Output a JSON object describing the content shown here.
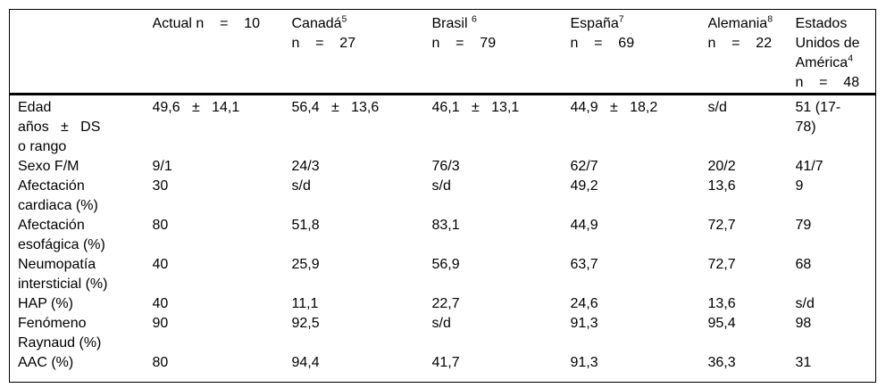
{
  "page": {
    "background_color": "#ffffff",
    "text_color": "#000000",
    "border_color": "#000000"
  },
  "table": {
    "header": {
      "columns": [
        {
          "id": "row-labels",
          "lines": []
        },
        {
          "id": "actual",
          "lines": [
            {
              "text": "Actual n    =    10"
            }
          ]
        },
        {
          "id": "canada",
          "lines": [
            {
              "text": "Canadá",
              "sup": "5"
            },
            {
              "text": "n    =    27"
            }
          ]
        },
        {
          "id": "brasil",
          "lines": [
            {
              "text": "Brasil ",
              "sup": "6"
            },
            {
              "text": "n    =    79"
            }
          ]
        },
        {
          "id": "espana",
          "lines": [
            {
              "text": "España",
              "sup": "7"
            },
            {
              "text": "n    =    69"
            }
          ]
        },
        {
          "id": "alemania",
          "lines": [
            {
              "text": "Alemania",
              "sup": "8"
            },
            {
              "text": "n    =    22"
            }
          ]
        },
        {
          "id": "estados-unidos-de-america",
          "lines": [
            {
              "text": "Estados"
            },
            {
              "text": "Unidos de"
            },
            {
              "text": "América",
              "sup": "4"
            },
            {
              "text": "n    =    48"
            }
          ]
        }
      ]
    },
    "rows": [
      {
        "label": "Edad\naños   ±   DS\no rango",
        "values": [
          "49,6   ±   14,1",
          "56,4   ±   13,6",
          "46,1   ±   13,1",
          "44,9   ±   18,2",
          "s/d",
          "51 (17-\n78)"
        ]
      },
      {
        "label": "Sexo F/M",
        "values": [
          "9/1",
          "24/3",
          "76/3",
          "62/7",
          "20/2",
          "41/7"
        ]
      },
      {
        "label": "Afectación\ncardiaca (%)",
        "values": [
          "30",
          "s/d",
          "s/d",
          "49,2",
          "13,6",
          "9"
        ]
      },
      {
        "label": "Afectación\nesofágica (%)",
        "values": [
          "80",
          "51,8",
          "83,1",
          "44,9",
          "72,7",
          "79"
        ]
      },
      {
        "label": "Neumopatía\nintersticial (%)",
        "values": [
          "40",
          "25,9",
          "56,9",
          "63,7",
          "72,7",
          "68"
        ]
      },
      {
        "label": "HAP (%)",
        "values": [
          "40",
          "11,1",
          "22,7",
          "24,6",
          "13,6",
          "s/d"
        ]
      },
      {
        "label": "Fenómeno\nRaynaud (%)",
        "values": [
          "90",
          "92,5",
          "s/d",
          "91,3",
          "95,4",
          "98"
        ]
      },
      {
        "label": "AAC (%)",
        "values": [
          "80",
          "94,4",
          "41,7",
          "91,3",
          "36,3",
          "31"
        ]
      }
    ]
  }
}
